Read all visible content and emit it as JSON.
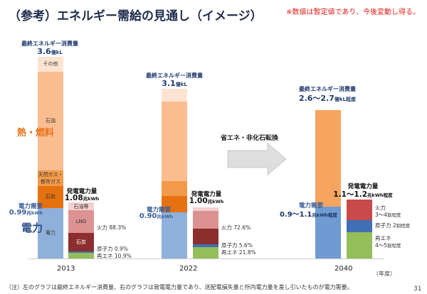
{
  "title": "（参考）エネルギー需給の見通し（イメージ）",
  "note_top": "※数値は暫定値であり、今後変動し得る。",
  "side_labels": {
    "heat_fuel": "熱・燃料",
    "electricity": "電力"
  },
  "arrow_label": "省エネ・非化石転換",
  "year_unit": "（年度）",
  "footnote": "（注）左のグラフは最終エネルギー消費量、右のグラフは発電電力量であり、送配電損失量と所内電力量を差し引いたものが電力需要。",
  "page_number": "31",
  "colors": {
    "other": "#fde4d2",
    "oil": "#f9bd90",
    "gas": "#f39a4a",
    "coal_fuel": "#e6720f",
    "electricity": "#8fb0da",
    "oil_etc_gen": "#f3d0d0",
    "lng": "#dc9291",
    "coal_gen": "#8c2e2e",
    "nuclear": "#3f6fb5",
    "renewable": "#93be5a",
    "fuel_2040": "#f5a560",
    "elec_2040": "#6f9bd2",
    "thermal_2040": "#c84a4a",
    "arrow": "#dedede",
    "title": "#1f2d4d",
    "note": "#e0201b"
  },
  "chart_data": {
    "type": "bar",
    "stacked": true,
    "categories": [
      "2013",
      "2022",
      "2040"
    ],
    "xlabel": "（年度）",
    "final_consumption": [
      {
        "year": "2013",
        "total_label": "最終エネルギー消費量",
        "total": "3.6",
        "unit": "億kL",
        "segments": [
          {
            "key": "electricity",
            "label": "電力",
            "value": 0.9
          },
          {
            "key": "coal_fuel",
            "label": "石炭",
            "value": 0.39
          },
          {
            "key": "gas",
            "label": "天然ガス・都市ガス",
            "value": 0.28
          },
          {
            "key": "oil",
            "label": "石油",
            "value": 1.76
          },
          {
            "key": "other",
            "label": "その他",
            "value": 0.27
          }
        ],
        "demand_label": "電力需要",
        "demand": "0.99",
        "demand_unit": "兆kWh"
      },
      {
        "year": "2022",
        "total_label": "最終エネルギー消費量",
        "total": "3.1",
        "unit": "億kL",
        "segments": [
          {
            "key": "electricity",
            "value": 0.82
          },
          {
            "key": "coal_fuel",
            "value": 0.29
          },
          {
            "key": "gas",
            "value": 0.27
          },
          {
            "key": "oil",
            "value": 1.42
          },
          {
            "key": "other",
            "value": 0.23
          }
        ],
        "demand_label": "電力需要",
        "demand": "0.90",
        "demand_unit": "兆kWh"
      },
      {
        "year": "2040",
        "total_label": "最終エネルギー消費量",
        "total": "2.6～2.7",
        "unit": "億kL程度",
        "segments": [
          {
            "key": "elec_2040",
            "value": 0.93
          },
          {
            "key": "fuel_2040",
            "value": 1.72
          }
        ],
        "demand_label": "電力需要",
        "demand": "0.9～1.1",
        "demand_unit": "兆kWh程度"
      }
    ],
    "generation": [
      {
        "year": "2013",
        "total_label": "発電電力量",
        "total": "1.08",
        "unit": "兆kWh",
        "total_value": 1.08,
        "segments": [
          {
            "key": "renewable",
            "share": 10.9
          },
          {
            "key": "nuclear",
            "share": 0.9
          },
          {
            "key": "coal_gen",
            "label": "石炭",
            "share": 33.0
          },
          {
            "key": "lng",
            "label": "LNG",
            "share": 41.0
          },
          {
            "key": "oil_etc_gen",
            "label": "石油等",
            "share": 14.3
          }
        ],
        "shares": [
          {
            "label": "火力",
            "value": "88.3%"
          },
          {
            "label": "原子力",
            "value": "0.9%"
          },
          {
            "label": "再エネ",
            "value": "10.9%"
          }
        ]
      },
      {
        "year": "2022",
        "total_label": "発電電力量",
        "total": "1.00",
        "unit": "兆kWh",
        "total_value": 1.0,
        "segments": [
          {
            "key": "renewable",
            "share": 21.8
          },
          {
            "key": "nuclear",
            "share": 5.6
          },
          {
            "key": "coal_gen",
            "share": 31.0
          },
          {
            "key": "lng",
            "share": 35.0
          },
          {
            "key": "oil_etc_gen",
            "share": 6.6
          }
        ],
        "shares": [
          {
            "label": "火力",
            "value": "72.6%"
          },
          {
            "label": "原子力",
            "value": "5.6%"
          },
          {
            "label": "再エネ",
            "value": "21.8%"
          }
        ]
      },
      {
        "year": "2040",
        "total_label": "発電電力量",
        "total": "1.1～1.2",
        "unit": "兆kWh程度",
        "total_value": 1.15,
        "segments": [
          {
            "key": "renewable",
            "share": 45
          },
          {
            "key": "nuclear",
            "share": 20
          },
          {
            "key": "thermal_2040",
            "share": 35
          }
        ],
        "shares": [
          {
            "label": "火力",
            "value": "3～4",
            "unit": "割程度"
          },
          {
            "label": "原子力",
            "value": "2",
            "unit": "割程度"
          },
          {
            "label": "再エネ",
            "value": "4～5",
            "unit": "割程度"
          }
        ]
      }
    ]
  }
}
